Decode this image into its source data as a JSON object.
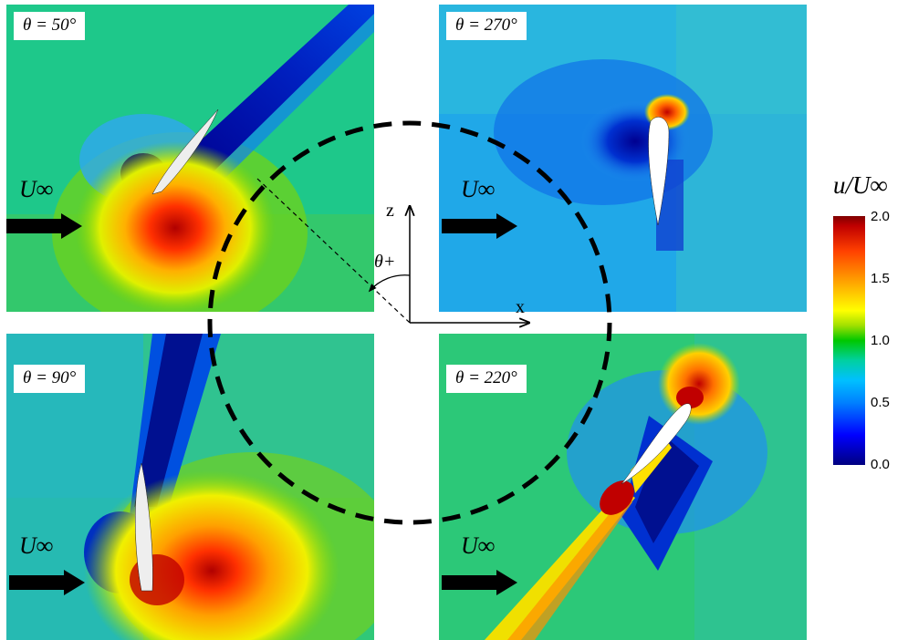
{
  "panels": [
    {
      "angle": "θ = 50°",
      "freestream": "U∞"
    },
    {
      "angle": "θ = 270°",
      "freestream": "U∞"
    },
    {
      "angle": "θ = 90°",
      "freestream": "U∞"
    },
    {
      "angle": "θ = 220°",
      "freestream": "U∞"
    }
  ],
  "axes": {
    "z": "z",
    "x": "x",
    "theta": "θ+"
  },
  "colorbar": {
    "title": "u/U∞",
    "ticks": [
      "2.0",
      "1.5",
      "1.0",
      "0.5",
      "0.0"
    ]
  }
}
